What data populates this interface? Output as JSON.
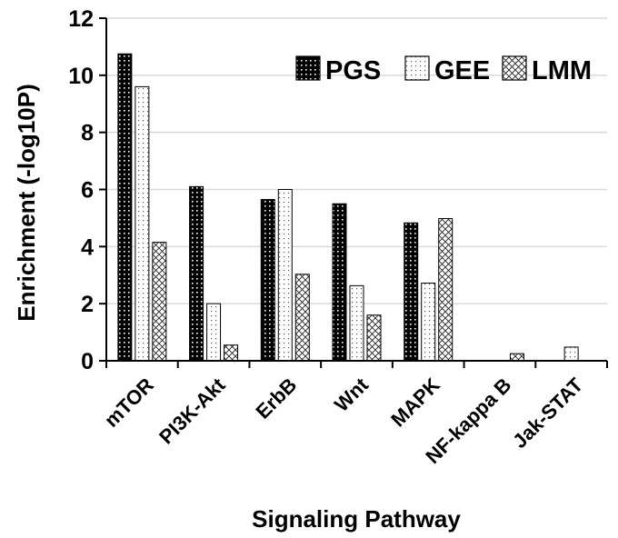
{
  "chart_data": {
    "type": "bar",
    "xlabel": "Signaling Pathway",
    "ylabel": "Enrichment (-log10P)",
    "ylim": [
      0,
      12
    ],
    "yticks": [
      "0",
      "2",
      "4",
      "6",
      "8",
      "10",
      "12"
    ],
    "grid": true,
    "legend_position": "top-right",
    "categories": [
      "mTOR",
      "PI3K-Akt",
      "ErbB",
      "Wnt",
      "MAPK",
      "NF-kappa B",
      "Jak-STAT"
    ],
    "series": [
      {
        "name": "PGS",
        "pattern": "dark-dotted",
        "values": [
          10.75,
          6.1,
          5.65,
          5.5,
          4.83,
          0,
          0
        ]
      },
      {
        "name": "GEE",
        "pattern": "light-dotted",
        "values": [
          9.6,
          2.0,
          6.0,
          2.63,
          2.72,
          0,
          0.48
        ]
      },
      {
        "name": "LMM",
        "pattern": "crosshatch",
        "values": [
          4.15,
          0.55,
          3.03,
          1.6,
          4.98,
          0.25,
          0
        ]
      }
    ],
    "colors": {
      "grid": "#d9d9d9",
      "axis": "#000000",
      "bar_edge": "#000000"
    }
  }
}
